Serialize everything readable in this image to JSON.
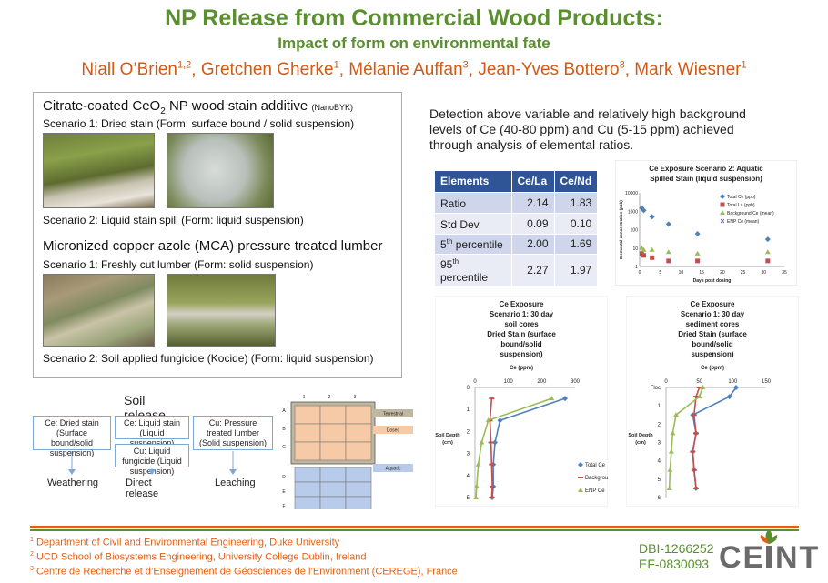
{
  "header": {
    "title": "NP Release from Commercial Wood Products:",
    "subtitle": "Impact of form on environmental fate",
    "authors": [
      {
        "name": "Niall O’Brien",
        "sup": "1,2"
      },
      {
        "name": "Gretchen Gherke",
        "sup": "1"
      },
      {
        "name": "Mélanie Auffan",
        "sup": "3"
      },
      {
        "name": "Jean-Yves Bottero",
        "sup": "3"
      },
      {
        "name": "Mark Wiesner",
        "sup": "1"
      }
    ]
  },
  "left_panel": {
    "cerium_heading_pre": "Citrate-coated CeO",
    "cerium_heading_sub": "2",
    "cerium_heading_post": " NP wood stain additive ",
    "cerium_heading_note": "(NanoBYK)",
    "ce_s1": "Scenario 1: Dried stain (Form: surface bound / solid suspension)",
    "ce_s2": "Scenario 2: Liquid stain spill (Form: liquid suspension)",
    "copper_heading": "Micronized copper azole (MCA) pressure treated lumber",
    "cu_s1": "Scenario 1: Freshly cut lumber (Form: solid suspension)",
    "cu_s2": "Scenario 2: Soil applied fungicide (Kocide) (Form: liquid suspension)"
  },
  "detection_text": "Detection above variable and relatively high background levels of Ce (40-80 ppm) and Cu (5-15 ppm) achieved through analysis of elemental ratios.",
  "ratio_table": {
    "headers": [
      "Elements",
      "Ce/La",
      "Ce/Nd"
    ],
    "rows": [
      {
        "label": "Ratio",
        "sup": "",
        "label_post": "",
        "ce_la": "2.14",
        "ce_nd": "1.83"
      },
      {
        "label": "Std Dev",
        "sup": "",
        "label_post": "",
        "ce_la": "0.09",
        "ce_nd": "0.10"
      },
      {
        "label": "5",
        "sup": "th",
        "label_post": " percentile",
        "ce_la": "2.00",
        "ce_nd": "1.69"
      },
      {
        "label": "95",
        "sup": "th",
        "label_post": " percentile",
        "ce_la": "2.27",
        "ce_nd": "1.97"
      }
    ]
  },
  "soil_release": {
    "title": "Soil release",
    "boxes": {
      "ce_dried": "Ce: Dried stain (Surface bound/solid suspension)",
      "ce_liquid": "Ce: Liquid stain (Liquid suspension)",
      "cu_fungicide": "Cu: Liquid fungicide (Liquid suspension)",
      "cu_lumber": "Cu: Pressure treated lumber (Solid suspension)"
    },
    "labels": [
      "Weathering",
      "Direct release",
      "Leaching"
    ]
  },
  "mesocosm": {
    "col_labels": [
      "1",
      "2",
      "3"
    ],
    "row_labels": [
      "A",
      "B",
      "C",
      "D",
      "E",
      "F"
    ],
    "legend": [
      "Terrestrial",
      "Dosed",
      "Aquatic"
    ],
    "colors": {
      "terrestrial": "#bfb7a0",
      "dosed": "#f6caa6",
      "aquatic": "#b8cbea"
    }
  },
  "chart_data": [
    {
      "type": "scatter",
      "title": "Ce Exposure Scenario 2: Aquatic Spilled Stain (liquid suspension)",
      "xlabel": "Days post dosing",
      "ylabel": "Elemental concentration (ppb)",
      "xlim": [
        0,
        35
      ],
      "ylim": [
        1,
        10000
      ],
      "yscale": "log",
      "xticks": [
        "0",
        "5",
        "10",
        "15",
        "20",
        "25",
        "30",
        "35"
      ],
      "yticks": [
        "1",
        "10",
        "100",
        "1000",
        "10000"
      ],
      "legend_position": "top-right",
      "series": [
        {
          "name": "Total Ce (ppb)",
          "color": "#4f81bd",
          "marker": "diamond",
          "x": [
            0.5,
            1,
            3,
            7,
            14,
            31
          ],
          "y": [
            1500,
            1100,
            500,
            200,
            60,
            30
          ]
        },
        {
          "name": "Total La (ppb)",
          "color": "#c0504d",
          "marker": "square",
          "x": [
            0.5,
            1,
            3,
            7,
            14,
            31
          ],
          "y": [
            5,
            4,
            3,
            2,
            2,
            2
          ]
        },
        {
          "name": "Background Ce (mean)",
          "color": "#9bbb59",
          "marker": "triangle",
          "x": [
            0.5,
            1,
            3,
            7,
            14,
            31
          ],
          "y": [
            10,
            8,
            8,
            6,
            5,
            6
          ]
        },
        {
          "name": "ENP Ce (mean)",
          "color": "#8064a2",
          "marker": "x",
          "x": [],
          "y": []
        }
      ]
    },
    {
      "type": "line",
      "title": "Ce Exposure Scenario 1: 30 day soil cores Dried Stain (surface bound/solid suspension)",
      "title_lines": [
        "Ce Exposure",
        "Scenario 1: 30 day",
        "soil cores",
        "Dried Stain (surface",
        "bound/solid",
        "suspension)"
      ],
      "xlabel": "Ce (ppm)",
      "ylabel": "Soil Depth (cm)",
      "xlim": [
        0,
        300
      ],
      "ylim": [
        0,
        5
      ],
      "xticks": [
        "0",
        "100",
        "200",
        "300"
      ],
      "yticks": [
        "0",
        "1",
        "2",
        "3",
        "4",
        "5"
      ],
      "legend_position": "right",
      "series": [
        {
          "name": "Total Ce",
          "color": "#4f81bd",
          "marker": "diamond",
          "x": [
            270,
            75,
            60,
            55,
            55,
            52
          ],
          "y": [
            0.5,
            1.5,
            2.5,
            3.5,
            4.5,
            5
          ]
        },
        {
          "name": "Background Ce",
          "color": "#c0504d",
          "marker": "dash",
          "x": [
            50,
            45,
            48,
            50,
            52,
            50
          ],
          "y": [
            0.5,
            1.5,
            2.5,
            3.5,
            4.5,
            5
          ]
        },
        {
          "name": "ENP Ce",
          "color": "#9bbb59",
          "marker": "triangle",
          "x": [
            230,
            40,
            20,
            10,
            5,
            3
          ],
          "y": [
            0.5,
            1.5,
            2.5,
            3.5,
            4.5,
            5
          ]
        }
      ]
    },
    {
      "type": "line",
      "title": "Ce Exposure Scenario 1: 30 day sediment cores Dried Stain (surface bound/solid suspension)",
      "title_lines": [
        "Ce Exposure",
        "Scenario 1: 30 day",
        "sediment cores",
        "Dried Stain (surface",
        "bound/solid",
        "suspension)"
      ],
      "xlabel": "Ce (ppm)",
      "ylabel": "Soil Depth (cm)",
      "xlim": [
        0,
        150
      ],
      "ylim": [
        0,
        6
      ],
      "xticks": [
        "0",
        "50",
        "100",
        "150"
      ],
      "yticks": [
        "Floc",
        "1",
        "2",
        "3",
        "4",
        "5",
        "6"
      ],
      "series": [
        {
          "name": "Total Ce",
          "color": "#4f81bd",
          "marker": "diamond",
          "x": [
            105,
            95,
            40,
            45,
            40,
            42,
            45
          ],
          "y": [
            0,
            0.5,
            1.5,
            2.5,
            3.5,
            4.5,
            5.5
          ]
        },
        {
          "name": "Background Ce",
          "color": "#c0504d",
          "marker": "dash",
          "x": [
            50,
            45,
            42,
            45,
            40,
            42,
            45
          ],
          "y": [
            0,
            0.5,
            1.5,
            2.5,
            3.5,
            4.5,
            5.5
          ]
        },
        {
          "name": "ENP Ce",
          "color": "#9bbb59",
          "marker": "triangle",
          "x": [
            55,
            50,
            15,
            10,
            8,
            6,
            5
          ],
          "y": [
            0,
            0.5,
            1.5,
            2.5,
            3.5,
            4.5,
            5.5
          ]
        }
      ]
    }
  ],
  "footnotes": [
    {
      "sup": "1",
      "text": " Department of Civil and Environmental Engineering, Duke University"
    },
    {
      "sup": "2",
      "text": " UCD School of Biosystems Engineering, University College Dublin, Ireland"
    },
    {
      "sup": "3",
      "text": " Centre de Recherche et d’Enseignement de Géosciences de l’Environment (CEREGE), France"
    }
  ],
  "grants": [
    "DBI-1266252",
    "EF-0830093"
  ],
  "logo_text": "CEINT",
  "colors": {
    "green": "#5a8f2e",
    "orange": "#e0621a",
    "table_header": "#2f5597"
  }
}
